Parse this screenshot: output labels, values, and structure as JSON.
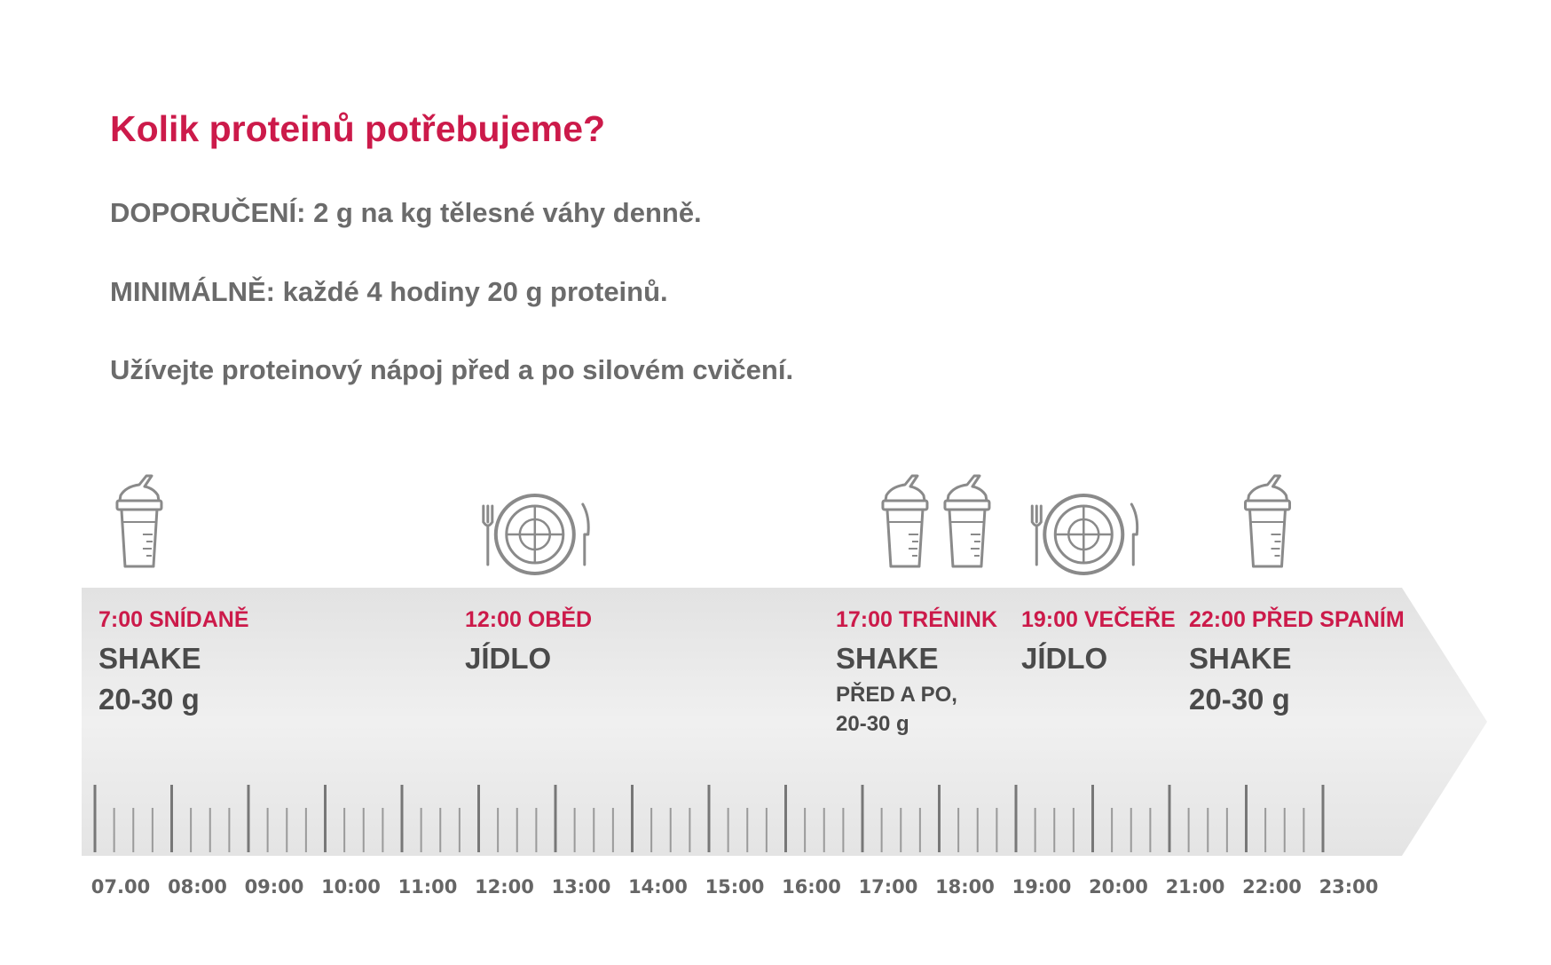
{
  "header": {
    "title": "Kolik proteinů potřebujeme?",
    "recommendation": "DOPORUČENÍ: 2 g na kg tělesné váhy denně.",
    "minimum": "MINIMÁLNĚ: každé 4 hodiny 20 g proteinů.",
    "advice": "Užívejte proteinový nápoj před a po silovém cvičení."
  },
  "timeline": {
    "hours": [
      "07.00",
      "08:00",
      "09:00",
      "10:00",
      "11:00",
      "12:00",
      "13:00",
      "14:00",
      "15:00",
      "16:00",
      "17:00",
      "18:00",
      "19:00",
      "20:00",
      "21:00",
      "22:00",
      "23:00"
    ],
    "events": [
      {
        "time_label": "7:00 SNÍDANĚ",
        "type": "SHAKE",
        "amount": "20-30 g",
        "note": "",
        "icon": "shaker-icon",
        "hour": 7.3
      },
      {
        "time_label": "12:00 OBĚD",
        "type": "JÍDLO",
        "amount": "",
        "note": "",
        "icon": "plate-icon",
        "hour": 12.2
      },
      {
        "time_label": "17:00 TRÉNINK",
        "type": "SHAKE",
        "amount": "",
        "note_line1": "PŘED A PO,",
        "note_line2": "20-30 g",
        "icon": "shaker-icon-pair",
        "hour": 17.3
      },
      {
        "time_label": "19:00 VEČEŘE",
        "type": "JÍDLO",
        "amount": "",
        "note": "",
        "icon": "plate-icon",
        "hour": 19.35
      },
      {
        "time_label": "22:00 PŘED SPANÍM",
        "type": "SHAKE",
        "amount": "20-30 g",
        "note": "",
        "icon": "shaker-icon",
        "hour": 22.0
      }
    ]
  },
  "colors": {
    "accent": "#cc1a4a",
    "text_gray": "#6b6b6b",
    "dark_text": "#4a4a4a",
    "arrow_fill": "#ebebeb",
    "icon_stroke": "#8a8a8a"
  }
}
